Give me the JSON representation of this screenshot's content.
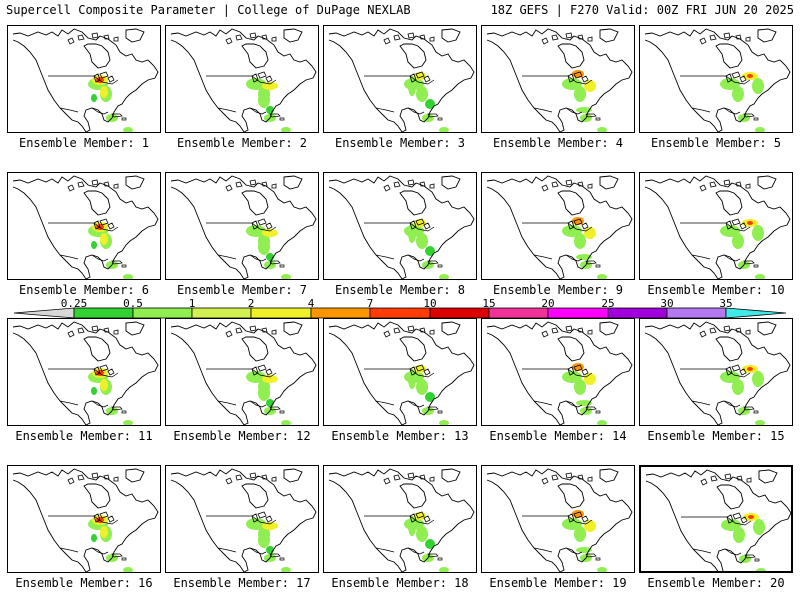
{
  "header": {
    "left": "Supercell Composite Parameter | College of DuPage NEXLAB",
    "right": "18Z GEFS | F270 Valid: 00Z FRI JUN 20 2025"
  },
  "panels": [
    {
      "label": "Ensemble Member: 1"
    },
    {
      "label": "Ensemble Member: 2"
    },
    {
      "label": "Ensemble Member: 3"
    },
    {
      "label": "Ensemble Member: 4"
    },
    {
      "label": "Ensemble Member: 5"
    },
    {
      "label": "Ensemble Member: 6"
    },
    {
      "label": "Ensemble Member: 7"
    },
    {
      "label": "Ensemble Member: 8"
    },
    {
      "label": "Ensemble Member: 9"
    },
    {
      "label": "Ensemble Member: 10"
    },
    {
      "label": "Ensemble Member: 11"
    },
    {
      "label": "Ensemble Member: 12"
    },
    {
      "label": "Ensemble Member: 13"
    },
    {
      "label": "Ensemble Member: 14"
    },
    {
      "label": "Ensemble Member: 15"
    },
    {
      "label": "Ensemble Member: 16"
    },
    {
      "label": "Ensemble Member: 17"
    },
    {
      "label": "Ensemble Member: 18"
    },
    {
      "label": "Ensemble Member: 19"
    },
    {
      "label": "Ensemble Member: 20"
    }
  ],
  "colorbar": {
    "labels": [
      "0.25",
      "0.5",
      "1",
      "2",
      "4",
      "7",
      "10",
      "15",
      "20",
      "25",
      "30",
      "35"
    ],
    "colors": [
      "#d8d8d8",
      "#32d232",
      "#90ee50",
      "#d2f050",
      "#f0f028",
      "#ff9600",
      "#ff3c00",
      "#dc0000",
      "#f0329a",
      "#ff00ff",
      "#a000dc",
      "#b478f0",
      "#40e8e8"
    ]
  }
}
